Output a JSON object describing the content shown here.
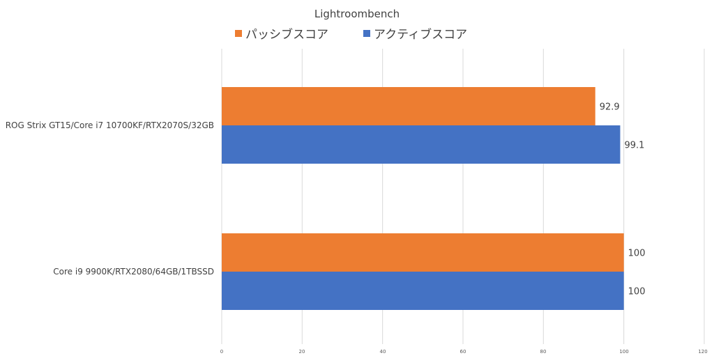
{
  "chart_data": {
    "type": "bar",
    "orientation": "horizontal",
    "title": "Lightroombench",
    "categories": [
      "ROG Strix GT15/Core i7 10700KF/RTX2070S/32GB",
      "Core i9 9900K/RTX2080/64GB/1TBSSD"
    ],
    "series": [
      {
        "name": "パッシブスコア",
        "color": "#ED7D31",
        "values": [
          92.9,
          100
        ],
        "labels": [
          "92.9",
          "100"
        ]
      },
      {
        "name": "アクティブスコア",
        "color": "#4472C4",
        "values": [
          99.1,
          100
        ],
        "labels": [
          "99.1",
          "100"
        ]
      }
    ],
    "xlim": [
      0,
      120
    ],
    "xticks": [
      0,
      20,
      40,
      60,
      80,
      100,
      120
    ],
    "xtick_labels": [
      "0",
      "20",
      "40",
      "60",
      "80",
      "100",
      "120"
    ],
    "legend": "top",
    "grid": true
  }
}
